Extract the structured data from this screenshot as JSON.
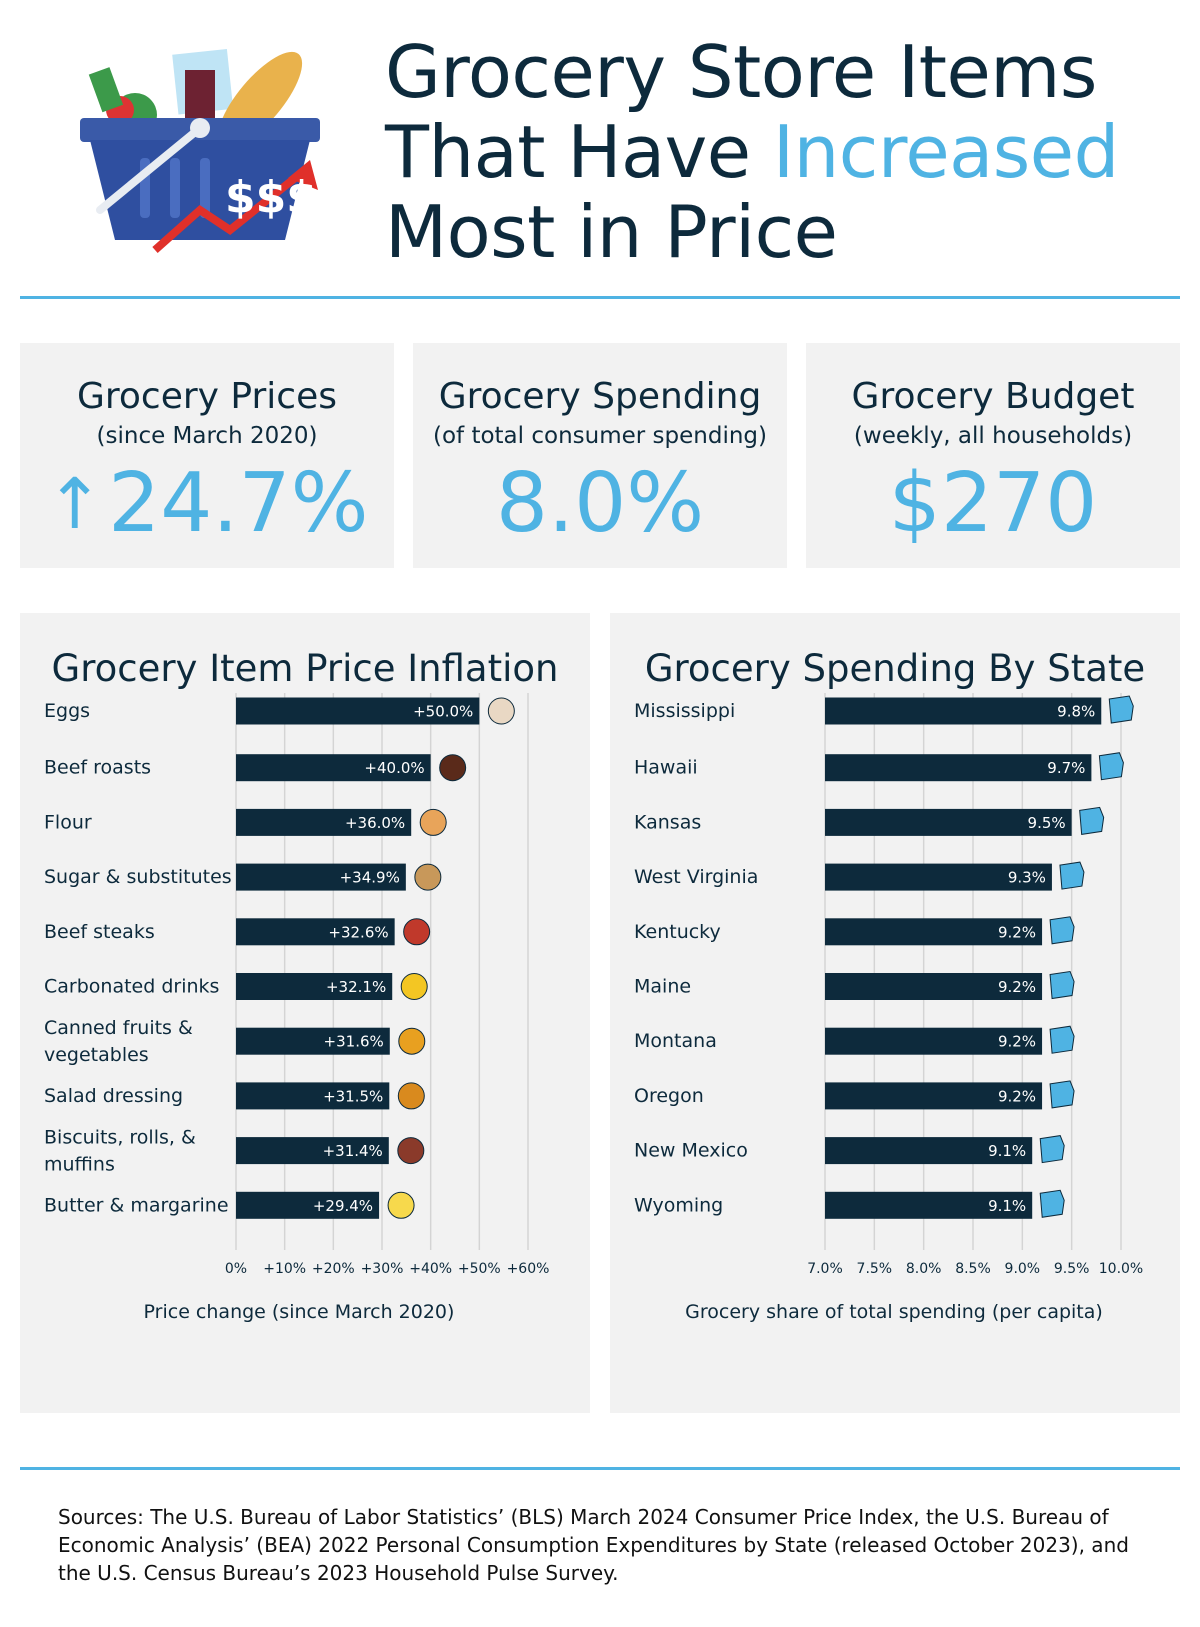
{
  "header": {
    "title_line1": "Grocery Store Items",
    "title_line2_a": "That Have ",
    "title_line2_b": "Increased",
    "title_line3": "Most in Price",
    "basket_text": "$$$"
  },
  "stats": [
    {
      "label": "Grocery Prices",
      "sub": "(since March 2020)",
      "value": "24.7%",
      "arrow": "↑"
    },
    {
      "label": "Grocery Spending",
      "sub": "(of total consumer spending)",
      "value": "8.0%"
    },
    {
      "label": "Grocery Budget",
      "sub": "(weekly, all households)",
      "value": "$270"
    }
  ],
  "chart_data": [
    {
      "type": "bar",
      "orientation": "horizontal",
      "title": "Grocery Item Price Inflation",
      "xlabel": "Price change (since March 2020)",
      "xlim": [
        0,
        60
      ],
      "ticks": [
        "0%",
        "+10%",
        "+20%",
        "+30%",
        "+40%",
        "+50%",
        "+60%"
      ],
      "categories": [
        "Eggs",
        "Beef roasts",
        "Flour",
        "Sugar & substitutes",
        "Beef steaks",
        "Carbonated drinks",
        "Canned fruits & vegetables",
        "Salad dressing",
        "Biscuits, rolls, & muffins",
        "Butter & margarine"
      ],
      "values": [
        50.0,
        40.0,
        36.0,
        34.9,
        32.6,
        32.1,
        31.6,
        31.5,
        31.4,
        29.4
      ],
      "labels": [
        "+50.0%",
        "+40.0%",
        "+36.0%",
        "+34.9%",
        "+32.6%",
        "+32.1%",
        "+31.6%",
        "+31.5%",
        "+31.4%",
        "+29.4%"
      ],
      "icons": [
        "egg-carton-icon",
        "beef-roast-icon",
        "flour-bag-icon",
        "sugar-sack-icon",
        "steak-icon",
        "soda-can-icon",
        "canned-food-icon",
        "dressing-bottle-icon",
        "muffin-icon",
        "butter-icon"
      ],
      "bar_color": "#0d2a3c",
      "grid": true
    },
    {
      "type": "bar",
      "orientation": "horizontal",
      "title": "Grocery Spending By State",
      "xlabel": "Grocery share of total spending (per capita)",
      "xlim": [
        7.0,
        10.0
      ],
      "ticks": [
        "7.0%",
        "7.5%",
        "8.0%",
        "8.5%",
        "9.0%",
        "9.5%",
        "10.0%"
      ],
      "categories": [
        "Mississippi",
        "Hawaii",
        "Kansas",
        "West Virginia",
        "Kentucky",
        "Maine",
        "Montana",
        "Oregon",
        "New Mexico",
        "Wyoming"
      ],
      "values": [
        9.8,
        9.7,
        9.5,
        9.3,
        9.2,
        9.2,
        9.2,
        9.2,
        9.1,
        9.1
      ],
      "labels": [
        "9.8%",
        "9.7%",
        "9.5%",
        "9.3%",
        "9.2%",
        "9.2%",
        "9.2%",
        "9.2%",
        "9.1%",
        "9.1%"
      ],
      "icons": [
        "mississippi-map-icon",
        "hawaii-map-icon",
        "kansas-map-icon",
        "west-virginia-map-icon",
        "kentucky-map-icon",
        "maine-map-icon",
        "montana-map-icon",
        "oregon-map-icon",
        "new-mexico-map-icon",
        "wyoming-map-icon"
      ],
      "bar_color": "#0d2a3c",
      "grid": true
    }
  ],
  "sources": "Sources: The U.S. Bureau of Labor Statistics’ (BLS) March 2024 Consumer Price Index, the U.S. Bureau of Economic Analysis’ (BEA) 2022 Personal Consumption Expenditures by State (released October 2023), and the U.S. Census Bureau’s 2023 Household Pulse Survey.",
  "colors": {
    "accent": "#4fb3e3",
    "dark": "#0d2a3c",
    "panel": "#f2f2f2"
  }
}
